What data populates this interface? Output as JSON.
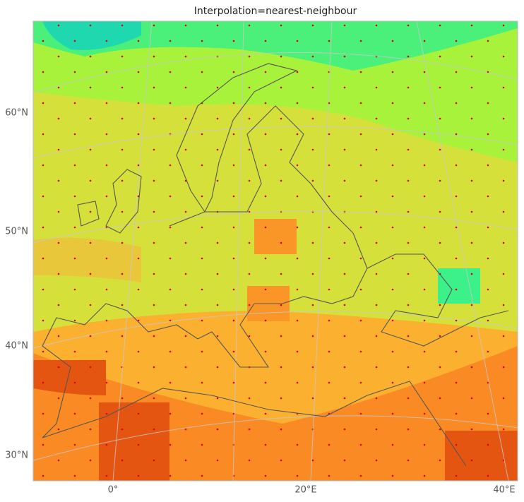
{
  "title": "Interpolation=nearest-neighbour",
  "lat_labels": [
    "60°N",
    "50°N",
    "40°N",
    "30°N"
  ],
  "lon_labels": [
    "0°",
    "20°E",
    "40°E"
  ]
}
